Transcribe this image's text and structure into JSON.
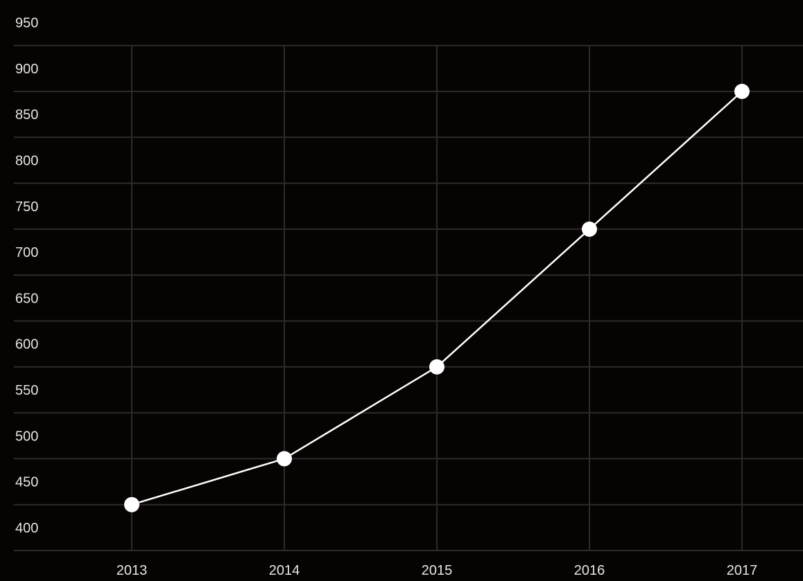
{
  "chart_data": {
    "type": "line",
    "title": "",
    "xlabel": "",
    "ylabel": "",
    "categories": [
      "2013",
      "2014",
      "2015",
      "2016",
      "2017"
    ],
    "series": [
      {
        "values": [
          425,
          475,
          575,
          725,
          875
        ]
      }
    ],
    "y_ticks": [
      400,
      450,
      500,
      550,
      600,
      650,
      700,
      750,
      800,
      850,
      900,
      950
    ],
    "ylim": [
      375,
      925
    ],
    "grid": true,
    "legend": "none",
    "colors": {
      "background": "#080303",
      "grid": "#2c2a2a",
      "line": "#ffffff",
      "marker": "#ffffff",
      "text": "#e8e4e4"
    }
  }
}
